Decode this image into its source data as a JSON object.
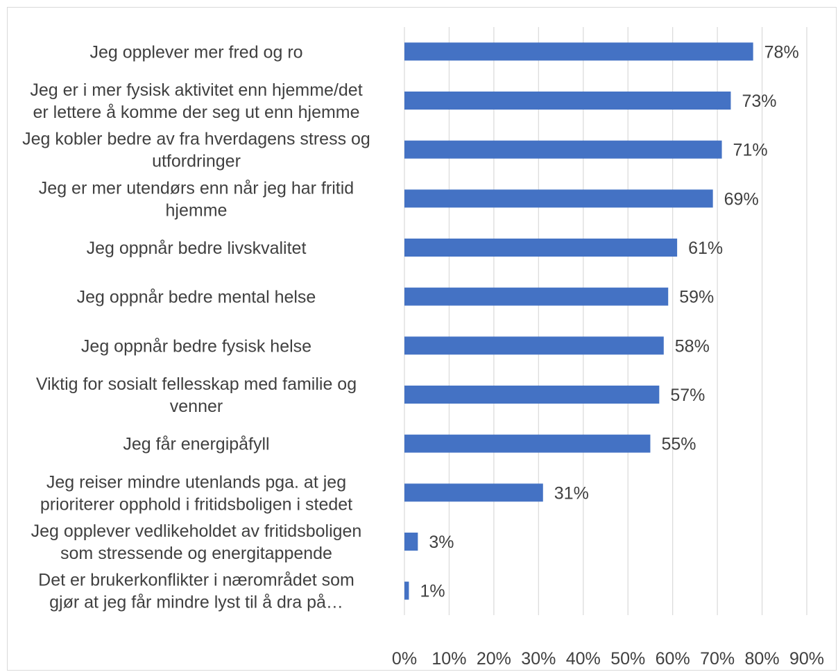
{
  "chart_data": {
    "type": "bar",
    "orientation": "horizontal",
    "title": "",
    "xlabel": "",
    "ylabel": "",
    "xlim": [
      0,
      90
    ],
    "grid": true,
    "bar_color": "#4472c4",
    "categories": [
      [
        "Jeg opplever mer fred og ro"
      ],
      [
        "Jeg er i mer fysisk aktivitet enn hjemme/det",
        "er lettere å komme der seg ut enn hjemme"
      ],
      [
        "Jeg kobler bedre av fra hverdagens stress og",
        "utfordringer"
      ],
      [
        "Jeg er mer utendørs enn når jeg har fritid",
        "hjemme"
      ],
      [
        "Jeg oppnår bedre livskvalitet"
      ],
      [
        "Jeg oppnår bedre mental helse"
      ],
      [
        "Jeg oppnår bedre fysisk helse"
      ],
      [
        "Viktig for sosialt fellesskap med familie og",
        "venner"
      ],
      [
        "Jeg får energipåfyll"
      ],
      [
        "Jeg reiser mindre utenlands pga. at jeg",
        "prioriterer opphold i fritidsboligen i stedet"
      ],
      [
        "Jeg opplever vedlikeholdet av fritidsboligen",
        "som stressende og energitappende"
      ],
      [
        "Det er brukerkonflikter i nærområdet som",
        "gjør at jeg får mindre lyst til å dra på…"
      ]
    ],
    "values": [
      78,
      73,
      71,
      69,
      61,
      59,
      58,
      57,
      55,
      31,
      3,
      1
    ],
    "data_labels": [
      "78%",
      "73%",
      "71%",
      "69%",
      "61%",
      "59%",
      "58%",
      "57%",
      "55%",
      "31%",
      "3%",
      "1%"
    ],
    "x_ticks": [
      0,
      10,
      20,
      30,
      40,
      50,
      60,
      70,
      80,
      90
    ],
    "x_tick_labels": [
      "0%",
      "10%",
      "20%",
      "30%",
      "40%",
      "50%",
      "60%",
      "70%",
      "80%",
      "90%"
    ]
  }
}
